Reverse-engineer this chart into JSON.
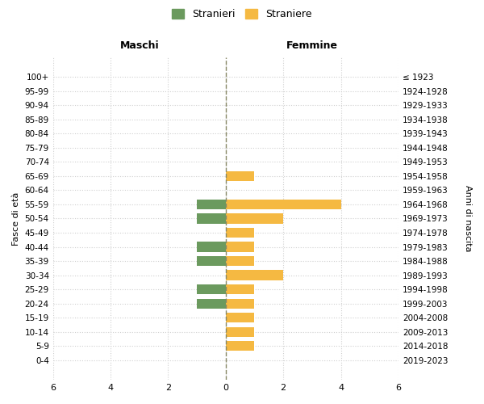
{
  "age_groups_top_to_bottom": [
    "100+",
    "95-99",
    "90-94",
    "85-89",
    "80-84",
    "75-79",
    "70-74",
    "65-69",
    "60-64",
    "55-59",
    "50-54",
    "45-49",
    "40-44",
    "35-39",
    "30-34",
    "25-29",
    "20-24",
    "15-19",
    "10-14",
    "5-9",
    "0-4"
  ],
  "birth_years_top_to_bottom": [
    "≤ 1923",
    "1924-1928",
    "1929-1933",
    "1934-1938",
    "1939-1943",
    "1944-1948",
    "1949-1953",
    "1954-1958",
    "1959-1963",
    "1964-1968",
    "1969-1973",
    "1974-1978",
    "1979-1983",
    "1984-1988",
    "1989-1993",
    "1994-1998",
    "1999-2003",
    "2004-2008",
    "2009-2013",
    "2014-2018",
    "2019-2023"
  ],
  "maschi_top_to_bottom": [
    0,
    0,
    0,
    0,
    0,
    0,
    0,
    0,
    0,
    -1,
    -1,
    0,
    -1,
    -1,
    0,
    -1,
    -1,
    0,
    0,
    0,
    0
  ],
  "femmine_top_to_bottom": [
    0,
    0,
    0,
    0,
    0,
    0,
    0,
    1,
    0,
    4,
    2,
    1,
    1,
    1,
    2,
    1,
    1,
    1,
    1,
    1,
    0
  ],
  "color_maschi": "#6b9a5e",
  "color_femmine": "#f5b942",
  "ylabel_left": "Fasce di età",
  "ylabel_right": "Anni di nascita",
  "xlabel_maschi": "Maschi",
  "xlabel_femmine": "Femmine",
  "legend_maschi": "Stranieri",
  "legend_femmine": "Straniere",
  "xlim": 6,
  "bg_color": "#ffffff",
  "grid_color": "#d0d0d0",
  "dashed_line_color": "#888866"
}
